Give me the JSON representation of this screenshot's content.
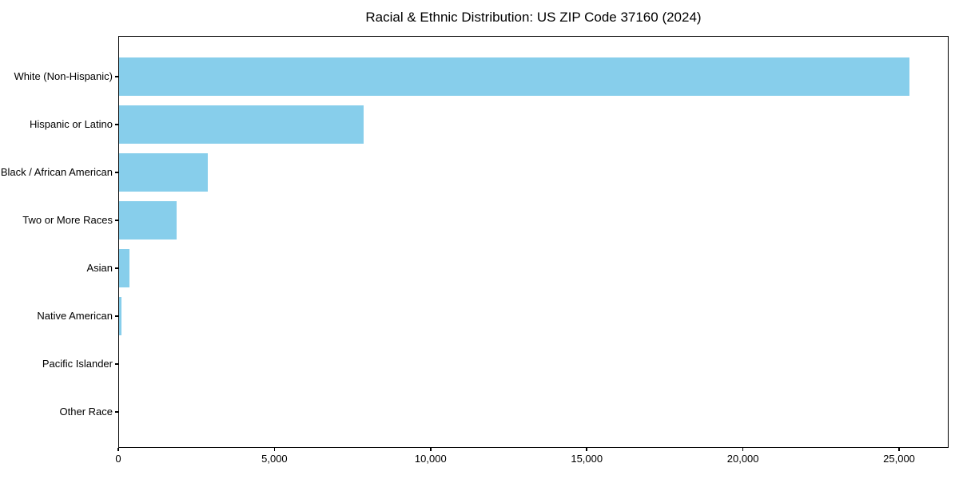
{
  "chart_data": {
    "type": "bar",
    "orientation": "horizontal",
    "title": "Racial & Ethnic Distribution: US ZIP Code 37160 (2024)",
    "categories": [
      "White (Non-Hispanic)",
      "Hispanic or Latino",
      "Black / African American",
      "Two or More Races",
      "Asian",
      "Native American",
      "Pacific Islander",
      "Other Race"
    ],
    "values": [
      25300,
      7840,
      2830,
      1830,
      320,
      80,
      0,
      0
    ],
    "xlabel": "",
    "ylabel": "",
    "xlim": [
      0,
      26560
    ],
    "xticks": [
      0,
      5000,
      10000,
      15000,
      20000,
      25000
    ],
    "xtick_labels": [
      "0",
      "5,000",
      "10,000",
      "15,000",
      "20,000",
      "25,000"
    ],
    "bar_color": "#87CEEB",
    "axis_color": "#000000",
    "text_color": "#000000",
    "background": "#ffffff",
    "grid": false,
    "legend": null
  }
}
